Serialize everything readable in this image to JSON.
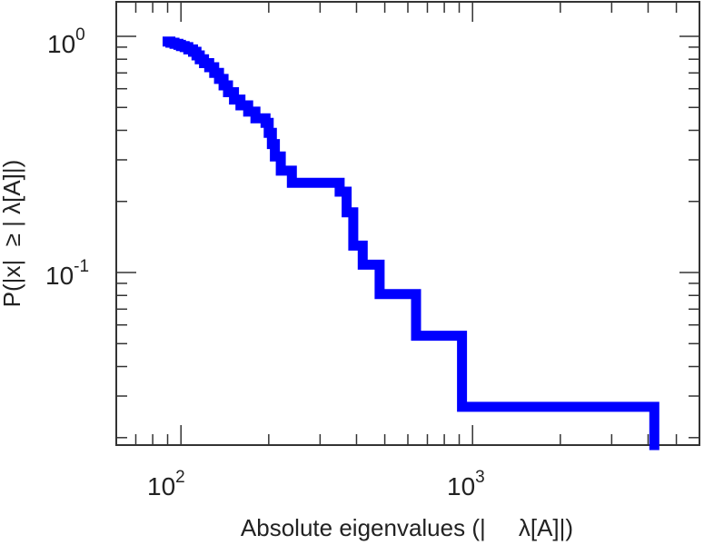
{
  "chart_data": {
    "type": "line",
    "title": "",
    "xlabel": "Absolute eigenvalues (|     λ[A]|)",
    "ylabel": "P(|x|  ≥ | λ[A]|)",
    "xscale": "log",
    "yscale": "log",
    "xlim": [
      60,
      6000
    ],
    "ylim": [
      0.0186,
      1.4
    ],
    "x_ticks": [
      {
        "base": "10",
        "exp": "2",
        "value": 100
      },
      {
        "base": "10",
        "exp": "3",
        "value": 1000
      }
    ],
    "y_ticks": [
      {
        "base": "10",
        "exp": "0",
        "value": 1
      },
      {
        "base": "10",
        "exp": "-1",
        "value": 0.1
      }
    ],
    "grid": false,
    "legend": "none",
    "series": [
      {
        "color": "#0000ff",
        "step": true,
        "points": [
          [
            90,
            0.95
          ],
          [
            92,
            0.94
          ],
          [
            95,
            0.93
          ],
          [
            98,
            0.92
          ],
          [
            100,
            0.91
          ],
          [
            103,
            0.9
          ],
          [
            106,
            0.88
          ],
          [
            110,
            0.86
          ],
          [
            113,
            0.83
          ],
          [
            116,
            0.8
          ],
          [
            120,
            0.77
          ],
          [
            125,
            0.74
          ],
          [
            130,
            0.7
          ],
          [
            135,
            0.66
          ],
          [
            140,
            0.62
          ],
          [
            145,
            0.58
          ],
          [
            152,
            0.54
          ],
          [
            160,
            0.51
          ],
          [
            170,
            0.48
          ],
          [
            180,
            0.45
          ],
          [
            195,
            0.43
          ],
          [
            200,
            0.39
          ],
          [
            205,
            0.35
          ],
          [
            210,
            0.31
          ],
          [
            220,
            0.27
          ],
          [
            240,
            0.24
          ],
          [
            350,
            0.22
          ],
          [
            370,
            0.18
          ],
          [
            390,
            0.13
          ],
          [
            420,
            0.108
          ],
          [
            480,
            0.081
          ],
          [
            640,
            0.054
          ],
          [
            920,
            0.027
          ],
          [
            4200,
            0.027
          ],
          [
            4200,
            0.0186
          ]
        ]
      }
    ]
  }
}
